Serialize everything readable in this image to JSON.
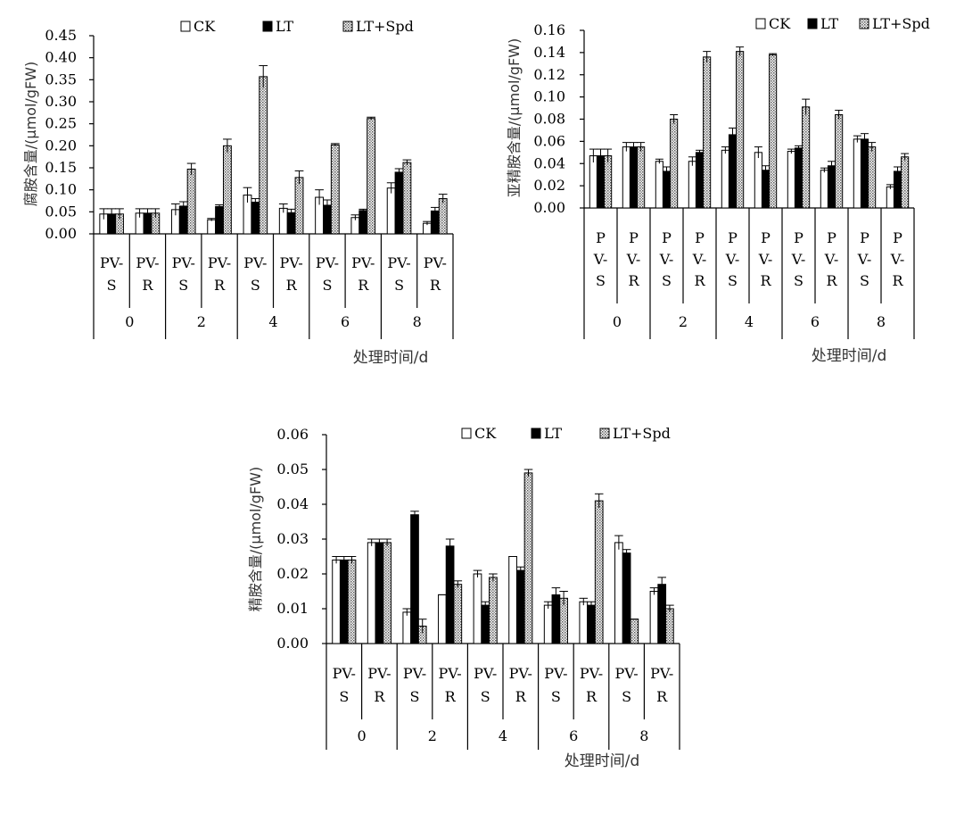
{
  "legend": {
    "ck": "CK",
    "lt": "LT",
    "spd": "LT+Spd"
  },
  "colors": {
    "ck": "#ffffff",
    "lt": "#000000",
    "spd": "#bfbfbf"
  },
  "chart_data": [
    {
      "type": "bar",
      "ylabel": "腐胺含量/(μmol/gFW)",
      "xlabel": "处理时间/d",
      "ylim": [
        0,
        0.45
      ],
      "yticks": [
        "0.00",
        "0.05",
        "0.10",
        "0.15",
        "0.20",
        "0.25",
        "0.30",
        "0.35",
        "0.40",
        "0.45"
      ],
      "groups": [
        "0",
        "2",
        "4",
        "6",
        "8"
      ],
      "subgroups": [
        "PV-S",
        "PV-R"
      ],
      "series": [
        {
          "name": "CK",
          "values": [
            0.045,
            0.047,
            0.055,
            0.032,
            0.088,
            0.058,
            0.083,
            0.037,
            0.104,
            0.024
          ],
          "errors": [
            0.012,
            0.01,
            0.013,
            0.003,
            0.017,
            0.01,
            0.017,
            0.006,
            0.012,
            0.004
          ]
        },
        {
          "name": "LT",
          "values": [
            0.045,
            0.047,
            0.063,
            0.062,
            0.072,
            0.048,
            0.065,
            0.053,
            0.14,
            0.052
          ],
          "errors": [
            0.012,
            0.01,
            0.01,
            0.004,
            0.008,
            0.008,
            0.012,
            0.003,
            0.008,
            0.008
          ]
        },
        {
          "name": "LT+Spd",
          "values": [
            0.045,
            0.047,
            0.147,
            0.2,
            0.357,
            0.128,
            0.202,
            0.262,
            0.162,
            0.08
          ],
          "errors": [
            0.012,
            0.01,
            0.013,
            0.015,
            0.025,
            0.015,
            0.003,
            0.003,
            0.006,
            0.01
          ]
        }
      ]
    },
    {
      "type": "bar",
      "ylabel": "亚精胺含量/(μmol/gFW)",
      "xlabel": "处理时间/d",
      "ylim": [
        0,
        0.16
      ],
      "yticks": [
        "0.00",
        "0.02",
        "0.04",
        "0.06",
        "0.08",
        "0.10",
        "0.12",
        "0.14",
        "0.16"
      ],
      "groups": [
        "0",
        "2",
        "4",
        "6",
        "8"
      ],
      "subgroups": [
        "P V- S",
        "P V- R"
      ],
      "series": [
        {
          "name": "CK",
          "values": [
            0.047,
            0.055,
            0.042,
            0.042,
            0.052,
            0.05,
            0.051,
            0.034,
            0.062,
            0.019
          ],
          "errors": [
            0.006,
            0.004,
            0.002,
            0.004,
            0.003,
            0.005,
            0.002,
            0.002,
            0.003,
            0.002
          ]
        },
        {
          "name": "LT",
          "values": [
            0.047,
            0.055,
            0.033,
            0.05,
            0.066,
            0.034,
            0.054,
            0.038,
            0.062,
            0.033
          ],
          "errors": [
            0.006,
            0.004,
            0.004,
            0.002,
            0.006,
            0.004,
            0.002,
            0.004,
            0.005,
            0.004
          ]
        },
        {
          "name": "LT+Spd",
          "values": [
            0.047,
            0.055,
            0.08,
            0.136,
            0.141,
            0.138,
            0.091,
            0.084,
            0.055,
            0.046
          ],
          "errors": [
            0.006,
            0.004,
            0.004,
            0.005,
            0.004,
            0.001,
            0.007,
            0.004,
            0.004,
            0.003
          ]
        }
      ]
    },
    {
      "type": "bar",
      "ylabel": "精胺含量/(μmol/gFW)",
      "xlabel": "处理时间/d",
      "ylim": [
        0,
        0.06
      ],
      "yticks": [
        "0.00",
        "0.01",
        "0.02",
        "0.03",
        "0.04",
        "0.05",
        "0.06"
      ],
      "groups": [
        "0",
        "2",
        "4",
        "6",
        "8"
      ],
      "subgroups": [
        "PV- S",
        "PV- R"
      ],
      "series": [
        {
          "name": "CK",
          "values": [
            0.024,
            0.029,
            0.009,
            0.014,
            0.02,
            0.025,
            0.011,
            0.012,
            0.029,
            0.015
          ],
          "errors": [
            0.001,
            0.001,
            0.001,
            0.0,
            0.001,
            0.0,
            0.001,
            0.001,
            0.002,
            0.001
          ]
        },
        {
          "name": "LT",
          "values": [
            0.024,
            0.029,
            0.037,
            0.028,
            0.011,
            0.021,
            0.014,
            0.011,
            0.026,
            0.017
          ],
          "errors": [
            0.001,
            0.001,
            0.001,
            0.002,
            0.001,
            0.001,
            0.002,
            0.001,
            0.001,
            0.002
          ]
        },
        {
          "name": "LT+Spd",
          "values": [
            0.024,
            0.029,
            0.005,
            0.017,
            0.019,
            0.049,
            0.013,
            0.041,
            0.007,
            0.01
          ],
          "errors": [
            0.001,
            0.001,
            0.002,
            0.001,
            0.001,
            0.001,
            0.002,
            0.002,
            0.0,
            0.001
          ]
        }
      ]
    }
  ]
}
